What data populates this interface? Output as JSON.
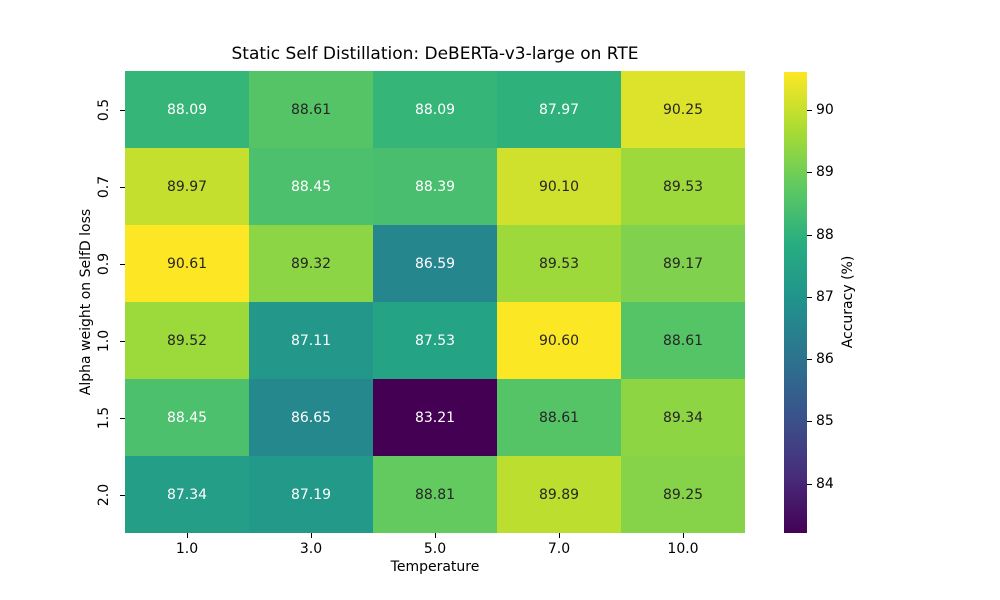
{
  "chart_data": {
    "type": "heatmap",
    "title": "Static Self Distillation: DeBERTa-v3-large on RTE",
    "xlabel": "Temperature",
    "ylabel": "Alpha weight on SelfD loss",
    "x_tick_labels": [
      "1.0",
      "3.0",
      "5.0",
      "7.0",
      "10.0"
    ],
    "y_tick_labels": [
      "0.5",
      "0.7",
      "0.9",
      "1.0",
      "1.5",
      "2.0"
    ],
    "values": [
      [
        88.09,
        88.61,
        88.09,
        87.97,
        90.25
      ],
      [
        89.97,
        88.45,
        88.39,
        90.1,
        89.53
      ],
      [
        90.61,
        89.32,
        86.59,
        89.53,
        89.17
      ],
      [
        89.52,
        87.11,
        87.53,
        90.6,
        88.61
      ],
      [
        88.45,
        86.65,
        83.21,
        88.61,
        89.34
      ],
      [
        87.34,
        87.19,
        88.81,
        89.89,
        89.25
      ]
    ],
    "colormap": "viridis",
    "legend_position": "right",
    "grid": false,
    "colorbar": {
      "label": "Accuracy (%)",
      "ticks": [
        84,
        85,
        86,
        87,
        88,
        89,
        90
      ]
    }
  }
}
